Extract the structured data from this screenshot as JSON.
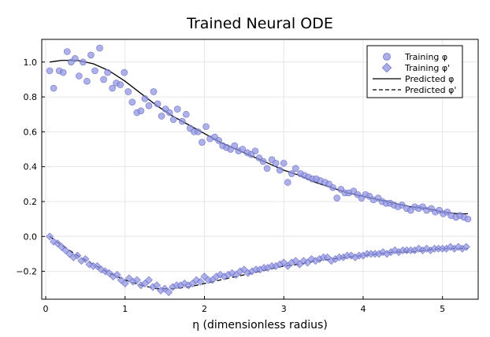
{
  "chart_data": {
    "type": "scatter",
    "title": "Trained Neural ODE",
    "xlabel": "η (dimensionless radius)",
    "ylabel": "",
    "xlim": [
      -0.05,
      5.45
    ],
    "ylim": [
      -0.36,
      1.13
    ],
    "xticks": [
      0,
      1,
      2,
      3,
      4,
      5
    ],
    "yticks": [
      -0.2,
      0.0,
      0.2,
      0.4,
      0.6,
      0.8,
      1.0
    ],
    "xtick_labels": [
      "0",
      "1",
      "2",
      "3",
      "4",
      "5"
    ],
    "ytick_labels": [
      "−0.2",
      "0.0",
      "0.2",
      "0.4",
      "0.6",
      "0.8",
      "1.0"
    ],
    "grid": true,
    "legend_position": "top-right",
    "colors": {
      "markers": "#8f93e0",
      "marker_edge": "#7074c8",
      "line": "#000000"
    },
    "series": [
      {
        "name": "Training φ",
        "kind": "scatter",
        "marker": "circle",
        "x": [
          0.05,
          0.1,
          0.17,
          0.22,
          0.27,
          0.32,
          0.37,
          0.42,
          0.47,
          0.52,
          0.57,
          0.62,
          0.68,
          0.73,
          0.78,
          0.84,
          0.89,
          0.94,
          0.99,
          1.04,
          1.09,
          1.15,
          1.2,
          1.25,
          1.3,
          1.36,
          1.41,
          1.46,
          1.51,
          1.56,
          1.61,
          1.66,
          1.72,
          1.77,
          1.82,
          1.87,
          1.92,
          1.97,
          2.02,
          2.07,
          2.13,
          2.18,
          2.23,
          2.28,
          2.33,
          2.38,
          2.43,
          2.48,
          2.54,
          2.59,
          2.64,
          2.69,
          2.74,
          2.79,
          2.85,
          2.9,
          2.95,
          3.0,
          3.05,
          3.1,
          3.15,
          3.21,
          3.26,
          3.31,
          3.36,
          3.41,
          3.46,
          3.52,
          3.57,
          3.62,
          3.67,
          3.72,
          3.77,
          3.82,
          3.88,
          3.93,
          3.98,
          4.03,
          4.08,
          4.13,
          4.19,
          4.24,
          4.29,
          4.34,
          4.39,
          4.44,
          4.49,
          4.55,
          4.6,
          4.65,
          4.7,
          4.75,
          4.8,
          4.86,
          4.91,
          4.96,
          5.01,
          5.06,
          5.11,
          5.17,
          5.22,
          5.27,
          5.32
        ],
        "y": [
          0.95,
          0.85,
          0.95,
          0.94,
          1.06,
          1.0,
          1.02,
          0.92,
          1.0,
          0.89,
          1.04,
          0.95,
          1.08,
          0.9,
          0.94,
          0.85,
          0.88,
          0.87,
          0.94,
          0.83,
          0.77,
          0.71,
          0.72,
          0.79,
          0.75,
          0.83,
          0.76,
          0.69,
          0.73,
          0.71,
          0.67,
          0.73,
          0.66,
          0.7,
          0.62,
          0.6,
          0.6,
          0.54,
          0.63,
          0.56,
          0.57,
          0.55,
          0.52,
          0.51,
          0.5,
          0.52,
          0.49,
          0.5,
          0.48,
          0.47,
          0.49,
          0.45,
          0.43,
          0.39,
          0.44,
          0.42,
          0.38,
          0.42,
          0.31,
          0.36,
          0.39,
          0.36,
          0.35,
          0.34,
          0.33,
          0.33,
          0.32,
          0.31,
          0.3,
          0.28,
          0.22,
          0.27,
          0.25,
          0.25,
          0.26,
          0.24,
          0.22,
          0.24,
          0.23,
          0.21,
          0.22,
          0.2,
          0.19,
          0.19,
          0.18,
          0.17,
          0.18,
          0.16,
          0.15,
          0.17,
          0.16,
          0.17,
          0.15,
          0.16,
          0.14,
          0.15,
          0.13,
          0.14,
          0.12,
          0.11,
          0.12,
          0.11,
          0.1
        ]
      },
      {
        "name": "Training φ'",
        "kind": "scatter",
        "marker": "diamond",
        "x": [
          0.05,
          0.1,
          0.15,
          0.2,
          0.25,
          0.3,
          0.35,
          0.4,
          0.45,
          0.5,
          0.55,
          0.6,
          0.65,
          0.7,
          0.75,
          0.8,
          0.85,
          0.9,
          0.95,
          1.0,
          1.05,
          1.1,
          1.15,
          1.2,
          1.25,
          1.3,
          1.35,
          1.4,
          1.45,
          1.5,
          1.55,
          1.6,
          1.65,
          1.7,
          1.75,
          1.8,
          1.85,
          1.9,
          1.95,
          2.0,
          2.05,
          2.1,
          2.15,
          2.2,
          2.25,
          2.3,
          2.35,
          2.4,
          2.45,
          2.5,
          2.55,
          2.6,
          2.65,
          2.7,
          2.75,
          2.8,
          2.85,
          2.9,
          2.95,
          3.0,
          3.05,
          3.1,
          3.15,
          3.2,
          3.25,
          3.3,
          3.35,
          3.4,
          3.45,
          3.5,
          3.55,
          3.6,
          3.65,
          3.7,
          3.75,
          3.8,
          3.85,
          3.9,
          3.95,
          4.0,
          4.05,
          4.1,
          4.15,
          4.2,
          4.25,
          4.3,
          4.35,
          4.4,
          4.45,
          4.5,
          4.55,
          4.6,
          4.65,
          4.7,
          4.75,
          4.8,
          4.85,
          4.9,
          4.95,
          5.0,
          5.05,
          5.1,
          5.15,
          5.2,
          5.25,
          5.3
        ],
        "y": [
          0.0,
          -0.03,
          -0.04,
          -0.06,
          -0.08,
          -0.1,
          -0.12,
          -0.11,
          -0.14,
          -0.13,
          -0.16,
          -0.17,
          -0.17,
          -0.19,
          -0.2,
          -0.21,
          -0.23,
          -0.22,
          -0.25,
          -0.27,
          -0.24,
          -0.26,
          -0.25,
          -0.28,
          -0.27,
          -0.25,
          -0.29,
          -0.28,
          -0.31,
          -0.3,
          -0.32,
          -0.29,
          -0.28,
          -0.28,
          -0.27,
          -0.28,
          -0.27,
          -0.25,
          -0.26,
          -0.23,
          -0.25,
          -0.25,
          -0.23,
          -0.22,
          -0.23,
          -0.22,
          -0.21,
          -0.22,
          -0.2,
          -0.19,
          -0.21,
          -0.2,
          -0.19,
          -0.19,
          -0.18,
          -0.18,
          -0.17,
          -0.17,
          -0.16,
          -0.15,
          -0.17,
          -0.15,
          -0.14,
          -0.16,
          -0.14,
          -0.15,
          -0.13,
          -0.14,
          -0.13,
          -0.12,
          -0.12,
          -0.14,
          -0.13,
          -0.12,
          -0.12,
          -0.11,
          -0.11,
          -0.12,
          -0.11,
          -0.11,
          -0.1,
          -0.1,
          -0.1,
          -0.1,
          -0.09,
          -0.1,
          -0.09,
          -0.08,
          -0.09,
          -0.08,
          -0.08,
          -0.08,
          -0.08,
          -0.07,
          -0.08,
          -0.07,
          -0.08,
          -0.07,
          -0.07,
          -0.07,
          -0.07,
          -0.06,
          -0.07,
          -0.06,
          -0.07,
          -0.06
        ]
      },
      {
        "name": "Predicted φ",
        "kind": "line",
        "style": "solid",
        "x": [
          0.05,
          0.2,
          0.4,
          0.6,
          0.8,
          1.0,
          1.2,
          1.4,
          1.6,
          1.8,
          2.0,
          2.2,
          2.4,
          2.6,
          2.8,
          3.0,
          3.2,
          3.4,
          3.6,
          3.8,
          4.0,
          4.2,
          4.4,
          4.6,
          4.8,
          5.0,
          5.2,
          5.32
        ],
        "y": [
          1.0,
          1.01,
          1.01,
          0.99,
          0.95,
          0.89,
          0.82,
          0.75,
          0.69,
          0.64,
          0.59,
          0.54,
          0.5,
          0.46,
          0.42,
          0.38,
          0.35,
          0.31,
          0.28,
          0.25,
          0.23,
          0.21,
          0.19,
          0.17,
          0.16,
          0.14,
          0.13,
          0.13
        ]
      },
      {
        "name": "Predicted φ'",
        "kind": "line",
        "style": "dashed",
        "x": [
          0.05,
          0.2,
          0.4,
          0.6,
          0.8,
          1.0,
          1.2,
          1.4,
          1.6,
          1.8,
          2.0,
          2.2,
          2.4,
          2.6,
          2.8,
          3.0,
          3.2,
          3.4,
          3.6,
          3.8,
          4.0,
          4.2,
          4.4,
          4.6,
          4.8,
          5.0,
          5.2,
          5.32
        ],
        "y": [
          0.0,
          -0.05,
          -0.11,
          -0.16,
          -0.21,
          -0.25,
          -0.28,
          -0.3,
          -0.3,
          -0.29,
          -0.27,
          -0.25,
          -0.23,
          -0.21,
          -0.19,
          -0.17,
          -0.16,
          -0.14,
          -0.13,
          -0.12,
          -0.11,
          -0.1,
          -0.09,
          -0.09,
          -0.08,
          -0.07,
          -0.07,
          -0.07
        ]
      }
    ]
  }
}
